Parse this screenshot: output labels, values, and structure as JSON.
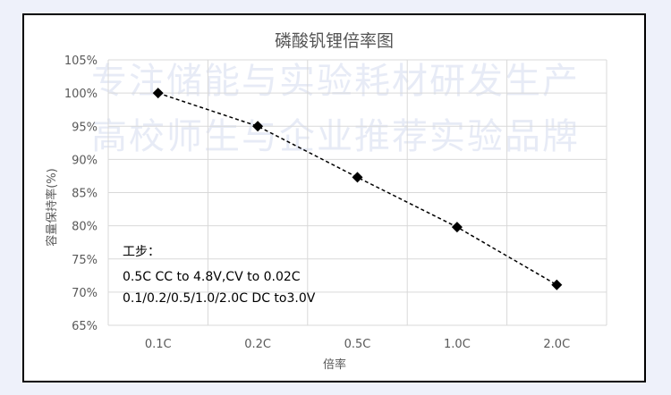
{
  "watermark": {
    "line1": "专注储能与实验耗材研发生产",
    "line2": "高校师生与企业推荐实验品牌"
  },
  "chart_data": {
    "type": "line",
    "title": "磷酸钒锂倍率图",
    "xlabel": "倍率",
    "ylabel": "容量保持率(%)",
    "categories": [
      "0.1C",
      "0.2C",
      "0.5C",
      "1.0C",
      "2.0C"
    ],
    "series": [
      {
        "values": [
          100,
          95,
          87.3,
          79.8,
          71.1
        ]
      }
    ],
    "ylim": [
      65,
      105
    ],
    "yticks": [
      65,
      70,
      75,
      80,
      85,
      90,
      95,
      100,
      105
    ],
    "ytick_labels": [
      "65%",
      "70%",
      "75%",
      "80%",
      "85%",
      "90%",
      "95%",
      "100%",
      "105%"
    ],
    "grid": true,
    "line_style": "dashed",
    "marker": "diamond",
    "color": "#000000",
    "annotation": [
      "工步：",
      "0.5C CC to 4.8V,CV to 0.02C",
      "0.1/0.2/0.5/1.0/2.0C DC to3.0V"
    ]
  }
}
